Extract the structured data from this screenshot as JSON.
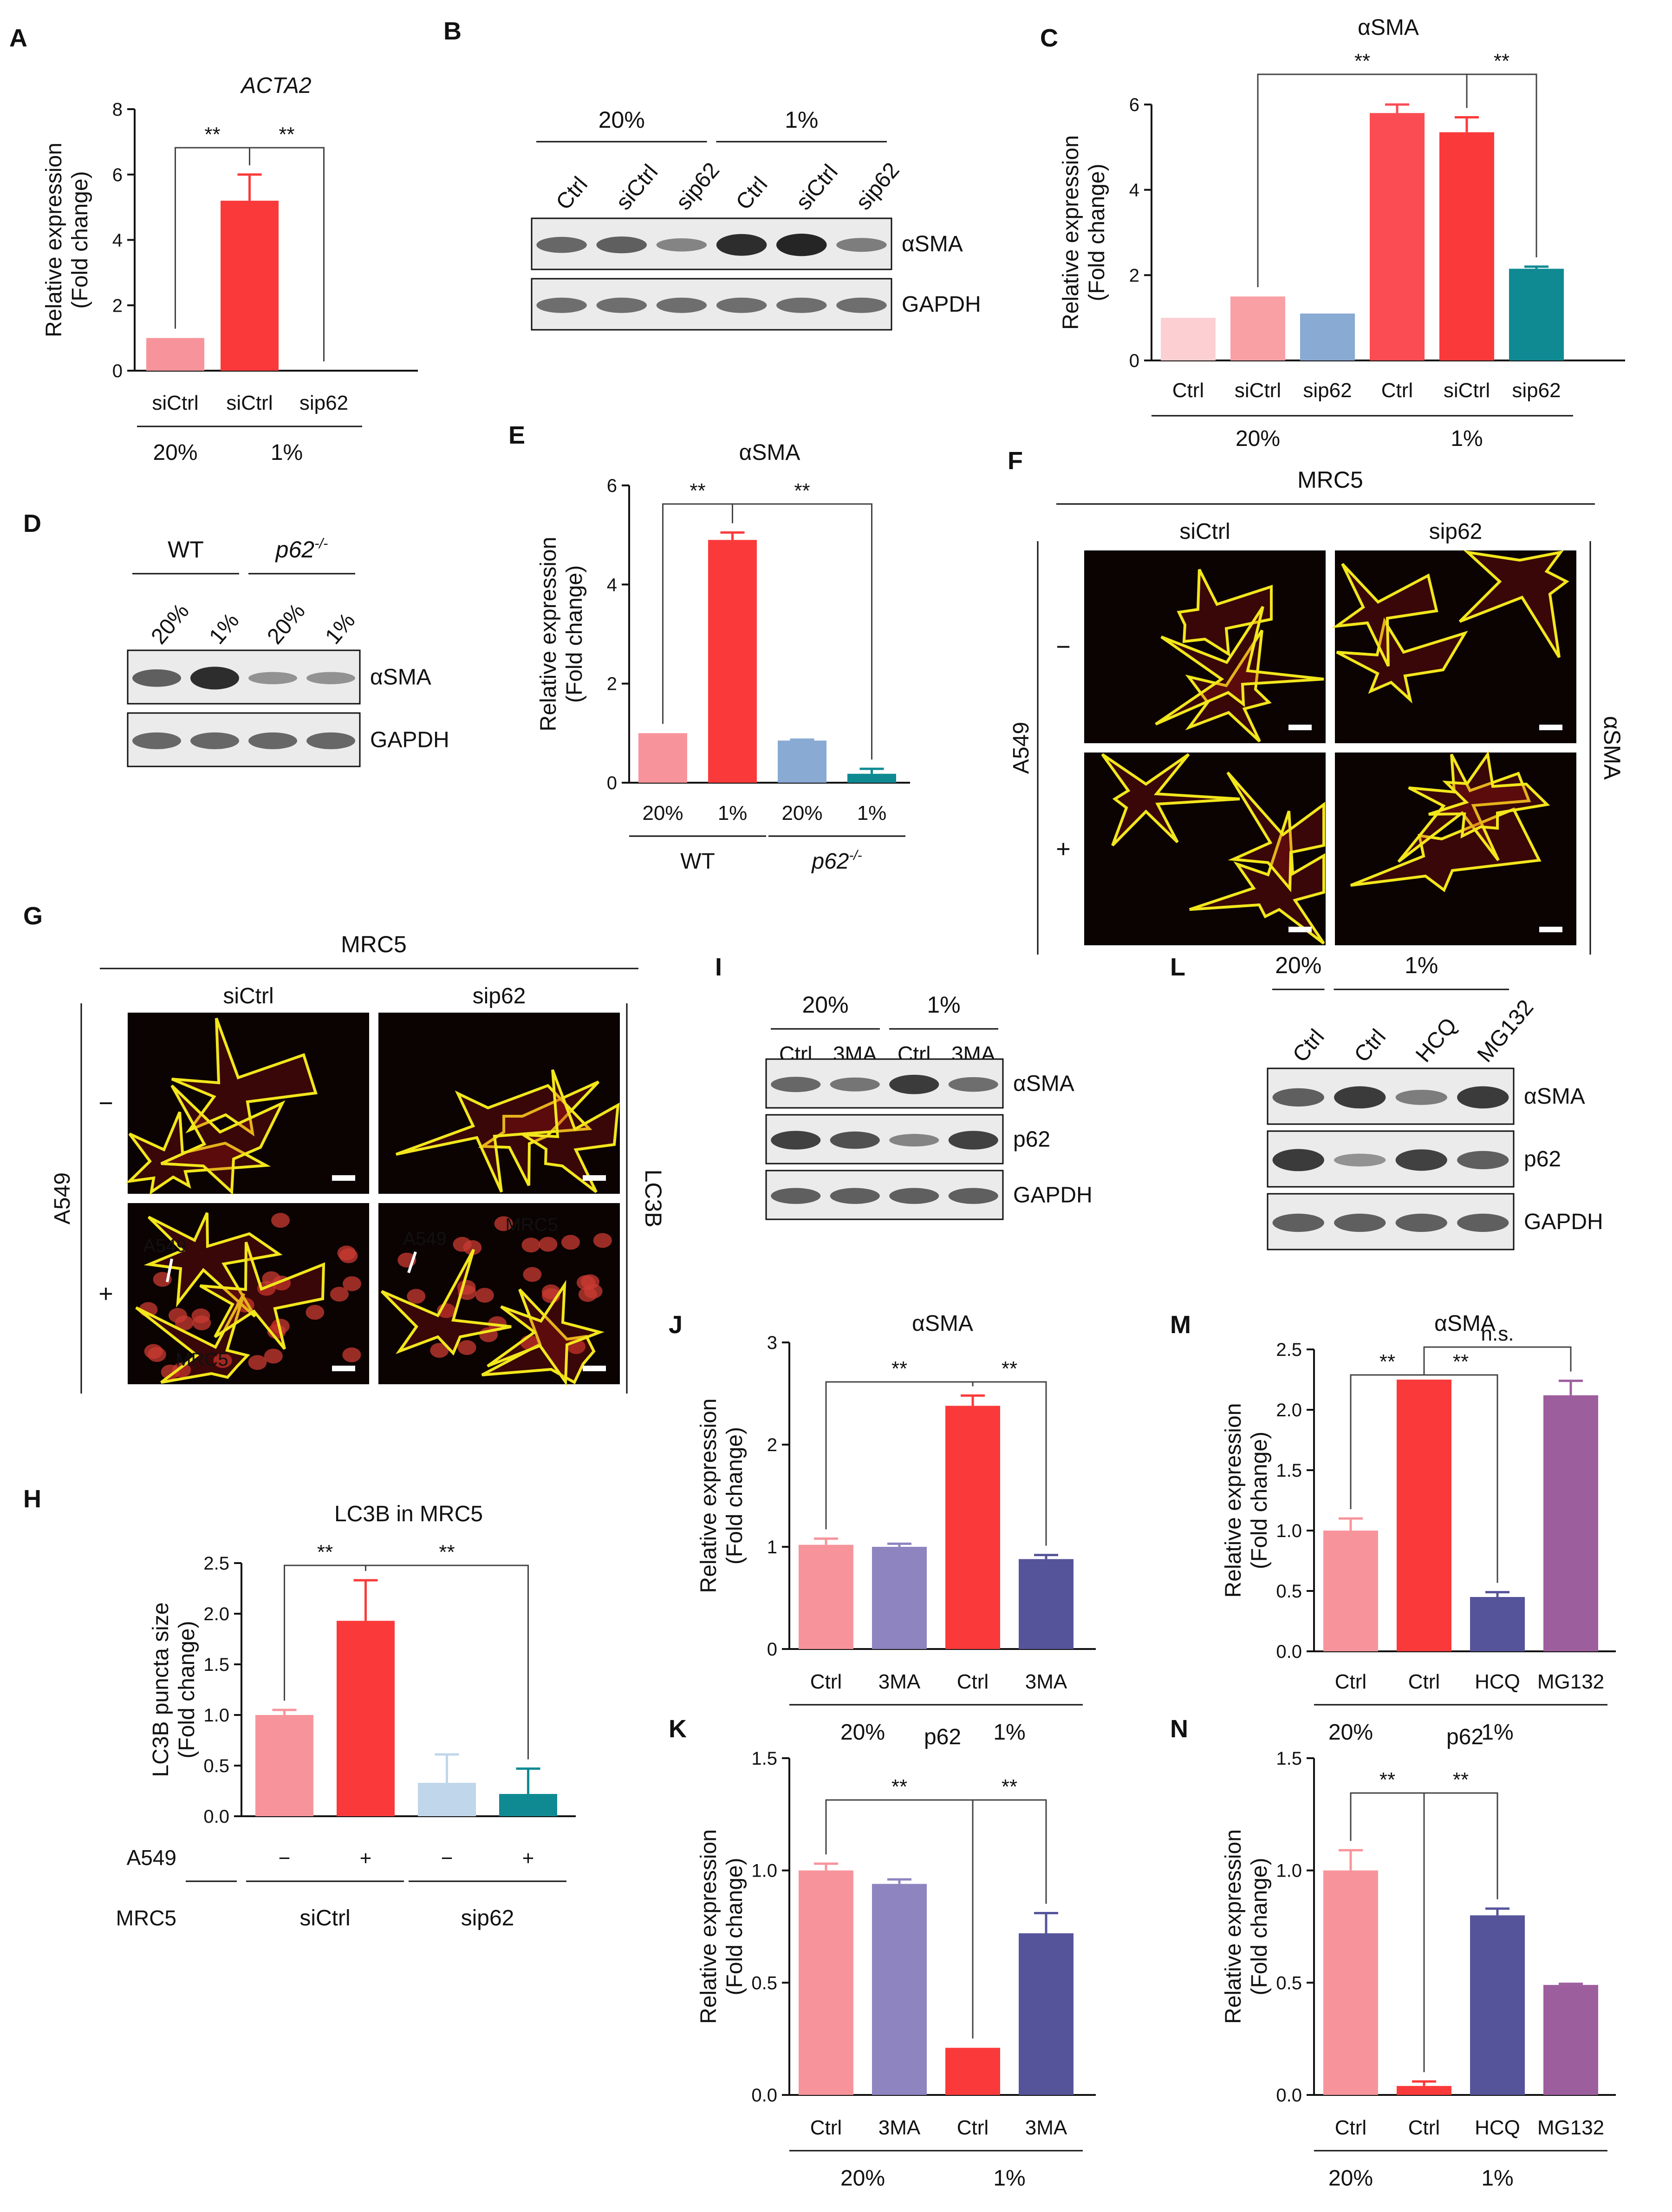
{
  "panels": [
    {
      "label": "A"
    },
    {
      "label": "B"
    },
    {
      "label": "C"
    },
    {
      "label": "D"
    },
    {
      "label": "E"
    },
    {
      "label": "F"
    },
    {
      "label": "G"
    },
    {
      "label": "H"
    },
    {
      "label": "I"
    },
    {
      "label": "J"
    },
    {
      "label": "K"
    },
    {
      "label": "L"
    },
    {
      "label": "M"
    },
    {
      "label": "N"
    }
  ],
  "colors": {
    "pink": "#f7949b",
    "red": "#fa3a3a",
    "lightpink": "#fcd0d2",
    "salmon": "#f9a0a5",
    "blue": "#88aad3",
    "teal": "#0f8a93",
    "lavender": "#8d84c0",
    "navy": "#55549a",
    "purple": "#9d5e9e",
    "lightblue": "#c0d6eb",
    "yellow": "#f2e61c",
    "band": "#1a1a1a"
  },
  "blots": {
    "B": {
      "groups": [
        {
          "label": "20%"
        },
        {
          "label": "1%"
        }
      ],
      "lanes": [
        "Ctrl",
        "siCtrl",
        "sip62",
        "Ctrl",
        "siCtrl",
        "sip62"
      ],
      "rows": [
        {
          "name": "αSMA",
          "intensity": [
            0.55,
            0.6,
            0.35,
            0.95,
            1.0,
            0.4
          ]
        },
        {
          "name": "GAPDH",
          "intensity": [
            0.5,
            0.5,
            0.5,
            0.5,
            0.5,
            0.5
          ]
        }
      ]
    },
    "D": {
      "groups": [
        {
          "label": "WT",
          "italic": false
        },
        {
          "label": "p62",
          "sup": "-/-",
          "italic": true
        }
      ],
      "lanes": [
        "20%",
        "1%",
        "20%",
        "1%"
      ],
      "rows": [
        {
          "name": "αSMA",
          "intensity": [
            0.6,
            0.95,
            0.25,
            0.25
          ]
        },
        {
          "name": "GAPDH",
          "intensity": [
            0.55,
            0.55,
            0.55,
            0.55
          ]
        }
      ]
    },
    "I": {
      "groups": [
        {
          "label": "20%"
        },
        {
          "label": "1%"
        }
      ],
      "lanes": [
        "Ctrl",
        "3MA",
        "Ctrl",
        "3MA"
      ],
      "rows": [
        {
          "name": "αSMA",
          "intensity": [
            0.55,
            0.45,
            0.85,
            0.5
          ]
        },
        {
          "name": "p62",
          "intensity": [
            0.8,
            0.7,
            0.35,
            0.8
          ]
        },
        {
          "name": "GAPDH",
          "intensity": [
            0.6,
            0.6,
            0.6,
            0.6
          ]
        }
      ]
    },
    "L": {
      "groups": [
        {
          "label": "20%"
        },
        {
          "label": "1%"
        }
      ],
      "lanes": [
        "Ctrl",
        "Ctrl",
        "HCQ",
        "MG132"
      ],
      "rows": [
        {
          "name": "αSMA",
          "intensity": [
            0.6,
            0.85,
            0.4,
            0.85
          ]
        },
        {
          "name": "p62",
          "intensity": [
            0.85,
            0.25,
            0.8,
            0.6
          ]
        },
        {
          "name": "GAPDH",
          "intensity": [
            0.6,
            0.6,
            0.6,
            0.6
          ]
        }
      ]
    }
  },
  "micro": {
    "F": {
      "title": "MRC5",
      "cols": [
        "siCtrl",
        "sip62"
      ],
      "row_label": "A549",
      "row_signs": [
        "−",
        "+"
      ],
      "stain": "αSMA"
    },
    "G": {
      "title": "MRC5",
      "cols": [
        "siCtrl",
        "sip62"
      ],
      "row_label": "A549",
      "row_signs": [
        "−",
        "+"
      ],
      "stain": "LC3B",
      "annotations": [
        "A549",
        "MRC5",
        "A549",
        "MRC5"
      ]
    }
  },
  "chart_data": [
    {
      "id": "A",
      "type": "bar",
      "title": "ACTA2",
      "ylabel": "Relative expression\n(Fold change)",
      "ylim": [
        0,
        8
      ],
      "yticks": [
        "0",
        "2",
        "4",
        "6",
        "8"
      ],
      "categories": [
        "siCtrl",
        "siCtrl",
        "sip62"
      ],
      "values": [
        1.0,
        5.2,
        0
      ],
      "errors": [
        0,
        0.8,
        0
      ],
      "colors": [
        "#f7949b",
        "#fa3a3a",
        "#f7949b"
      ],
      "groups": [
        {
          "label": "20%"
        },
        {
          "label": "1%"
        }
      ],
      "sig": [
        {
          "label": "**"
        },
        {
          "label": "**"
        }
      ]
    },
    {
      "id": "C",
      "type": "bar",
      "title": "αSMA",
      "ylabel": "Relative expression\n(Fold change)",
      "ylim": [
        0,
        6
      ],
      "yticks": [
        "0",
        "2",
        "4",
        "6"
      ],
      "categories": [
        "Ctrl",
        "siCtrl",
        "sip62",
        "Ctrl",
        "siCtrl",
        "sip62"
      ],
      "values": [
        1.0,
        1.5,
        1.1,
        5.8,
        5.35,
        2.15
      ],
      "errors": [
        0,
        0,
        0,
        0.2,
        0.35,
        0.05
      ],
      "colors": [
        "#fcd0d2",
        "#f9a0a5",
        "#88aad3",
        "#fa4c52",
        "#fa3a3a",
        "#0f8a93"
      ],
      "groups": [
        {
          "label": "20%"
        },
        {
          "label": "1%"
        }
      ],
      "sig": [
        {
          "label": "**"
        },
        {
          "label": "**"
        }
      ]
    },
    {
      "id": "E",
      "type": "bar",
      "title": "αSMA",
      "ylabel": "Relative expression\n(Fold change)",
      "ylim": [
        0,
        6
      ],
      "yticks": [
        "0",
        "2",
        "4",
        "6"
      ],
      "categories": [
        "20%",
        "1%",
        "20%",
        "1%"
      ],
      "values": [
        1.0,
        4.9,
        0.85,
        0.18
      ],
      "errors": [
        0,
        0.15,
        0.02,
        0.1
      ],
      "colors": [
        "#f7949b",
        "#fa3a3a",
        "#88aad3",
        "#0f8a93"
      ],
      "groups": [
        {
          "label": "WT",
          "italic": false
        },
        {
          "label": "p62",
          "sup": "-/-",
          "italic": true
        }
      ],
      "sig": [
        {
          "label": "**"
        },
        {
          "label": "**"
        }
      ]
    },
    {
      "id": "H",
      "type": "bar",
      "title": "LC3B in MRC5",
      "ylabel": "LC3B puncta size\n(Fold change)",
      "ylim": [
        0,
        2.5
      ],
      "yticks": [
        "0.0",
        "0.5",
        "1.0",
        "1.5",
        "2.0",
        "2.5"
      ],
      "categories": [
        "−",
        "+",
        "−",
        "+"
      ],
      "values": [
        1.0,
        1.93,
        0.33,
        0.22
      ],
      "errors": [
        0.05,
        0.4,
        0.28,
        0.25
      ],
      "colors": [
        "#f7949b",
        "#fa3a3a",
        "#c0d6eb",
        "#0f8a93"
      ],
      "row1_label": "A549",
      "row2_label": "MRC5",
      "groups": [
        {
          "label": "siCtrl"
        },
        {
          "label": "sip62"
        }
      ],
      "sig": [
        {
          "label": "**"
        },
        {
          "label": "**"
        }
      ]
    },
    {
      "id": "J",
      "type": "bar",
      "title": "αSMA",
      "ylabel": "Relative expression\n(Fold change)",
      "ylim": [
        0,
        3
      ],
      "yticks": [
        "0",
        "1",
        "2",
        "3"
      ],
      "categories": [
        "Ctrl",
        "3MA",
        "Ctrl",
        "3MA"
      ],
      "values": [
        1.02,
        1.0,
        2.38,
        0.88
      ],
      "errors": [
        0.06,
        0.03,
        0.1,
        0.04
      ],
      "colors": [
        "#f7949b",
        "#8d84c0",
        "#fa3a3a",
        "#55549a"
      ],
      "groups": [
        {
          "label": "20%"
        },
        {
          "label": "1%"
        }
      ],
      "sig": [
        {
          "label": "**"
        },
        {
          "label": "**"
        }
      ]
    },
    {
      "id": "K",
      "type": "bar",
      "title": "p62",
      "ylabel": "Relative expression\n(Fold change)",
      "ylim": [
        0,
        1.5
      ],
      "yticks": [
        "0.0",
        "0.5",
        "1.0",
        "1.5"
      ],
      "categories": [
        "Ctrl",
        "3MA",
        "Ctrl",
        "3MA"
      ],
      "values": [
        1.0,
        0.94,
        0.21,
        0.72
      ],
      "errors": [
        0.03,
        0.02,
        0.0,
        0.09
      ],
      "colors": [
        "#f7949b",
        "#8d84c0",
        "#fa3a3a",
        "#55549a"
      ],
      "groups": [
        {
          "label": "20%"
        },
        {
          "label": "1%"
        }
      ],
      "sig": [
        {
          "label": "**"
        },
        {
          "label": "**"
        }
      ]
    },
    {
      "id": "M",
      "type": "bar",
      "title": "αSMA",
      "ylabel": "Relative expression\n(Fold change)",
      "ylim": [
        0,
        2.5
      ],
      "yticks": [
        "0.0",
        "0.5",
        "1.0",
        "1.5",
        "2.0",
        "2.5"
      ],
      "categories": [
        "Ctrl",
        "Ctrl",
        "HCQ",
        "MG132"
      ],
      "values": [
        1.0,
        2.25,
        0.45,
        2.12
      ],
      "errors": [
        0.1,
        0,
        0.04,
        0.12
      ],
      "colors": [
        "#f7949b",
        "#fa3a3a",
        "#55549a",
        "#9d5e9e"
      ],
      "groups": [
        {
          "label": "20%"
        },
        {
          "label": "1%"
        }
      ],
      "sig": [
        {
          "label": "**"
        },
        {
          "label": "**"
        },
        {
          "label": "n.s."
        }
      ]
    },
    {
      "id": "N",
      "type": "bar",
      "title": "p62",
      "ylabel": "Relative expression\n(Fold change)",
      "ylim": [
        0,
        1.5
      ],
      "yticks": [
        "0.0",
        "0.5",
        "1.0",
        "1.5"
      ],
      "categories": [
        "Ctrl",
        "Ctrl",
        "HCQ",
        "MG132"
      ],
      "values": [
        1.0,
        0.04,
        0.8,
        0.49
      ],
      "errors": [
        0.09,
        0.02,
        0.03,
        0.005
      ],
      "colors": [
        "#f7949b",
        "#fa3a3a",
        "#55549a",
        "#9d5e9e"
      ],
      "groups": [
        {
          "label": "20%"
        },
        {
          "label": "1%"
        }
      ],
      "sig": [
        {
          "label": "**"
        },
        {
          "label": "**"
        }
      ]
    }
  ]
}
